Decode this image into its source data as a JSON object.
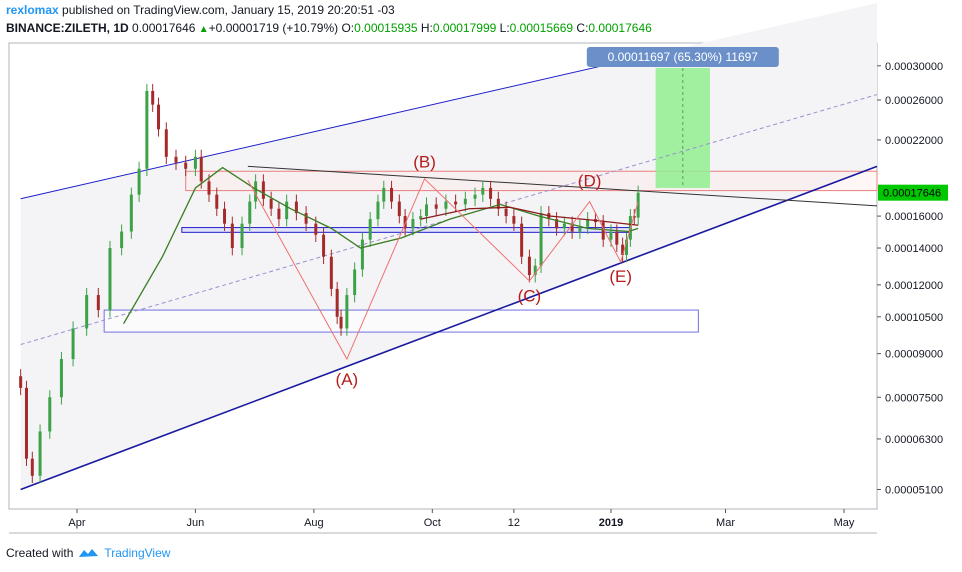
{
  "header": {
    "user": "rexlomax",
    "published_text": " published on TradingView.com, January 15, 2019 20:20:51 -03",
    "symbol": "BINANCE:ZILETH, 1D",
    "last": "0.00017646",
    "change": "+0.00001719 (+10.79%)",
    "o_label": "O:",
    "o_value": "0.00015935",
    "h_label": "H:",
    "h_value": "0.00017999",
    "l_label": "L:",
    "l_value": "0.00015669",
    "c_label": "C:",
    "c_value": "0.00017646"
  },
  "footer": {
    "created_with": "Created with",
    "brand": "TradingView"
  },
  "colors": {
    "up": "#3da147",
    "down": "#a52a2a",
    "channel": "#1f1fcc",
    "zone_red": "#e88080",
    "target_green": "#90ee90",
    "ma": "#3a7d22",
    "ma2": "#8b1a1a",
    "pattern": "#ef7070",
    "price_tag": "#00c800",
    "measure_tag": "#6a8fc9"
  },
  "chart_data": {
    "type": "candlestick",
    "title": "",
    "price_scale": "log",
    "ylim": [
      4.7e-05,
      0.00033
    ],
    "y_ticks": [
      "0.00030000",
      "0.00026000",
      "0.00022000",
      "0.00016000",
      "0.00014000",
      "0.00012000",
      "0.00010500",
      "0.00009000",
      "0.00007500",
      "0.00006300",
      "0.00005100"
    ],
    "y_tick_values": [
      0.0003,
      0.00026,
      0.00022,
      0.00016,
      0.00014,
      0.00012,
      0.000105,
      9e-05,
      7.5e-05,
      6.3e-05,
      5.1e-05
    ],
    "x_ticks": [
      "Apr",
      "Jun",
      "Aug",
      "Oct",
      "12",
      "2019",
      "Mar",
      "May"
    ],
    "x_tick_values": [
      "2018-04-01",
      "2018-06-01",
      "2018-08-01",
      "2018-10-01",
      "2018-11-12",
      "2019-01-01",
      "2019-03-01",
      "2019-05-01"
    ],
    "x_range": [
      "2018-02-25",
      "2019-05-18"
    ],
    "last_price": "0.00017646",
    "last_price_value": 0.00017646,
    "closes": [
      {
        "date": "2018-03-03",
        "close": 7.8e-05
      },
      {
        "date": "2018-03-06",
        "close": 5.8e-05
      },
      {
        "date": "2018-03-09",
        "close": 5.4e-05
      },
      {
        "date": "2018-03-13",
        "close": 6.5e-05
      },
      {
        "date": "2018-03-18",
        "close": 7.5e-05
      },
      {
        "date": "2018-03-24",
        "close": 8.8e-05
      },
      {
        "date": "2018-03-30",
        "close": 0.0001
      },
      {
        "date": "2018-04-06",
        "close": 0.000115
      },
      {
        "date": "2018-04-12",
        "close": 0.000108
      },
      {
        "date": "2018-04-18",
        "close": 0.00014
      },
      {
        "date": "2018-04-24",
        "close": 0.00015
      },
      {
        "date": "2018-04-29",
        "close": 0.000175
      },
      {
        "date": "2018-05-03",
        "close": 0.000195
      },
      {
        "date": "2018-05-07",
        "close": 0.00027
      },
      {
        "date": "2018-05-10",
        "close": 0.000255
      },
      {
        "date": "2018-05-13",
        "close": 0.00023
      },
      {
        "date": "2018-05-17",
        "close": 0.000205
      },
      {
        "date": "2018-05-22",
        "close": 0.0002
      },
      {
        "date": "2018-05-27",
        "close": 0.000195
      },
      {
        "date": "2018-06-01",
        "close": 0.000205
      },
      {
        "date": "2018-06-04",
        "close": 0.000185
      },
      {
        "date": "2018-06-08",
        "close": 0.000175
      },
      {
        "date": "2018-06-12",
        "close": 0.000165
      },
      {
        "date": "2018-06-16",
        "close": 0.000155
      },
      {
        "date": "2018-06-20",
        "close": 0.00014
      },
      {
        "date": "2018-06-25",
        "close": 0.000155
      },
      {
        "date": "2018-06-29",
        "close": 0.00017
      },
      {
        "date": "2018-07-02",
        "close": 0.000185
      },
      {
        "date": "2018-07-06",
        "close": 0.000172
      },
      {
        "date": "2018-07-10",
        "close": 0.000165
      },
      {
        "date": "2018-07-14",
        "close": 0.000158
      },
      {
        "date": "2018-07-18",
        "close": 0.00017
      },
      {
        "date": "2018-07-23",
        "close": 0.000162
      },
      {
        "date": "2018-07-28",
        "close": 0.000155
      },
      {
        "date": "2018-08-02",
        "close": 0.000148
      },
      {
        "date": "2018-08-06",
        "close": 0.000135
      },
      {
        "date": "2018-08-10",
        "close": 0.000118
      },
      {
        "date": "2018-08-13",
        "close": 0.000105
      },
      {
        "date": "2018-08-15",
        "close": 0.0001
      },
      {
        "date": "2018-08-18",
        "close": 0.000115
      },
      {
        "date": "2018-08-22",
        "close": 0.000128
      },
      {
        "date": "2018-08-26",
        "close": 0.000145
      },
      {
        "date": "2018-08-30",
        "close": 0.000158
      },
      {
        "date": "2018-09-03",
        "close": 0.00017
      },
      {
        "date": "2018-09-06",
        "close": 0.00018
      },
      {
        "date": "2018-09-10",
        "close": 0.00017
      },
      {
        "date": "2018-09-14",
        "close": 0.00016
      },
      {
        "date": "2018-09-17",
        "close": 0.000152
      },
      {
        "date": "2018-09-21",
        "close": 0.000158
      },
      {
        "date": "2018-09-25",
        "close": 0.00016
      },
      {
        "date": "2018-09-28",
        "close": 0.000168
      },
      {
        "date": "2018-10-03",
        "close": 0.000165
      },
      {
        "date": "2018-10-08",
        "close": 0.00017
      },
      {
        "date": "2018-10-13",
        "close": 0.000168
      },
      {
        "date": "2018-10-18",
        "close": 0.000172
      },
      {
        "date": "2018-10-23",
        "close": 0.000175
      },
      {
        "date": "2018-10-27",
        "close": 0.00018
      },
      {
        "date": "2018-10-31",
        "close": 0.000172
      },
      {
        "date": "2018-11-04",
        "close": 0.000165
      },
      {
        "date": "2018-11-08",
        "close": 0.00016
      },
      {
        "date": "2018-11-12",
        "close": 0.000155
      },
      {
        "date": "2018-11-16",
        "close": 0.000135
      },
      {
        "date": "2018-11-20",
        "close": 0.000125
      },
      {
        "date": "2018-11-23",
        "close": 0.00013
      },
      {
        "date": "2018-11-26",
        "close": 0.000162
      },
      {
        "date": "2018-11-30",
        "close": 0.000158
      },
      {
        "date": "2018-12-04",
        "close": 0.000152
      },
      {
        "date": "2018-12-08",
        "close": 0.000155
      },
      {
        "date": "2018-12-12",
        "close": 0.00015
      },
      {
        "date": "2018-12-16",
        "close": 0.000153
      },
      {
        "date": "2018-12-20",
        "close": 0.000158
      },
      {
        "date": "2018-12-24",
        "close": 0.000156
      },
      {
        "date": "2018-12-28",
        "close": 0.000145
      },
      {
        "date": "2019-01-01",
        "close": 0.00015
      },
      {
        "date": "2019-01-04",
        "close": 0.000142
      },
      {
        "date": "2019-01-07",
        "close": 0.000136
      },
      {
        "date": "2019-01-09",
        "close": 0.000145
      },
      {
        "date": "2019-01-11",
        "close": 0.00016
      },
      {
        "date": "2019-01-13",
        "close": 0.000159
      },
      {
        "date": "2019-01-15",
        "close": 0.00017646
      }
    ],
    "sma": [
      {
        "date": "2018-04-25",
        "value": 0.000102
      },
      {
        "date": "2018-05-15",
        "value": 0.000135
      },
      {
        "date": "2018-06-01",
        "value": 0.00018
      },
      {
        "date": "2018-06-15",
        "value": 0.000196
      },
      {
        "date": "2018-07-01",
        "value": 0.00018
      },
      {
        "date": "2018-07-20",
        "value": 0.000165
      },
      {
        "date": "2018-08-10",
        "value": 0.000152
      },
      {
        "date": "2018-08-25",
        "value": 0.00014
      },
      {
        "date": "2018-09-15",
        "value": 0.000146
      },
      {
        "date": "2018-10-10",
        "value": 0.000158
      },
      {
        "date": "2018-11-05",
        "value": 0.000168
      },
      {
        "date": "2018-11-25",
        "value": 0.00016
      },
      {
        "date": "2018-12-20",
        "value": 0.000152
      },
      {
        "date": "2019-01-10",
        "value": 0.00015
      },
      {
        "date": "2019-01-15",
        "value": 0.000152
      }
    ],
    "ema": [
      {
        "date": "2018-09-25",
        "value": 0.000158
      },
      {
        "date": "2018-10-20",
        "value": 0.000165
      },
      {
        "date": "2018-11-10",
        "value": 0.000166
      },
      {
        "date": "2018-12-01",
        "value": 0.00016
      },
      {
        "date": "2018-12-25",
        "value": 0.000157
      },
      {
        "date": "2019-01-15",
        "value": 0.000154
      }
    ],
    "channel_upper": [
      {
        "date": "2018-03-03",
        "value": 0.000172
      },
      {
        "date": "2019-01-28",
        "value": 0.000318
      }
    ],
    "channel_lower": [
      {
        "date": "2018-03-03",
        "value": 5.1e-05
      },
      {
        "date": "2019-05-18",
        "value": 0.000197
      }
    ],
    "channel_mid": [
      {
        "date": "2018-03-03",
        "value": 9.35e-05
      },
      {
        "date": "2019-05-18",
        "value": 0.000266
      }
    ],
    "resistance_line": [
      {
        "date": "2018-06-28",
        "value": 0.000197
      },
      {
        "date": "2019-05-18",
        "value": 0.000167
      }
    ],
    "zone_red": {
      "from": "2018-05-27",
      "to": "2019-05-18",
      "low": 0.000178,
      "high": 0.000193
    },
    "zone_blue_low": {
      "from": "2018-04-15",
      "to": "2019-02-15",
      "low": 9.85e-05,
      "high": 0.000108
    },
    "zone_blue_mid": {
      "from": "2018-05-25",
      "to": "2019-01-11",
      "low": 0.0001495,
      "high": 0.0001525
    },
    "measure_box": {
      "from": "2019-01-24",
      "to": "2019-02-21",
      "low": 0.00018,
      "high": 0.0002973,
      "label": "0.00011697 (65.30%) 11697"
    },
    "pattern_path": [
      {
        "date": "2018-06-28",
        "value": 0.000186
      },
      {
        "date": "2018-08-18",
        "value": 8.8e-05
      },
      {
        "date": "2018-09-27",
        "value": 0.000187
      },
      {
        "date": "2018-11-20",
        "value": 0.000122
      },
      {
        "date": "2018-12-21",
        "value": 0.00017
      },
      {
        "date": "2019-01-06",
        "value": 0.000132
      },
      {
        "date": "2019-01-15",
        "value": 0.00017
      }
    ],
    "pattern_labels": [
      {
        "text": "(A)",
        "date": "2018-08-18",
        "value": 7.9e-05
      },
      {
        "text": "(B)",
        "date": "2018-09-27",
        "value": 0.000196
      },
      {
        "text": "(C)",
        "date": "2018-11-20",
        "value": 0.000112
      },
      {
        "text": "(D)",
        "date": "2018-12-21",
        "value": 0.000181
      },
      {
        "text": "(E)",
        "date": "2019-01-06",
        "value": 0.0001215
      }
    ]
  }
}
